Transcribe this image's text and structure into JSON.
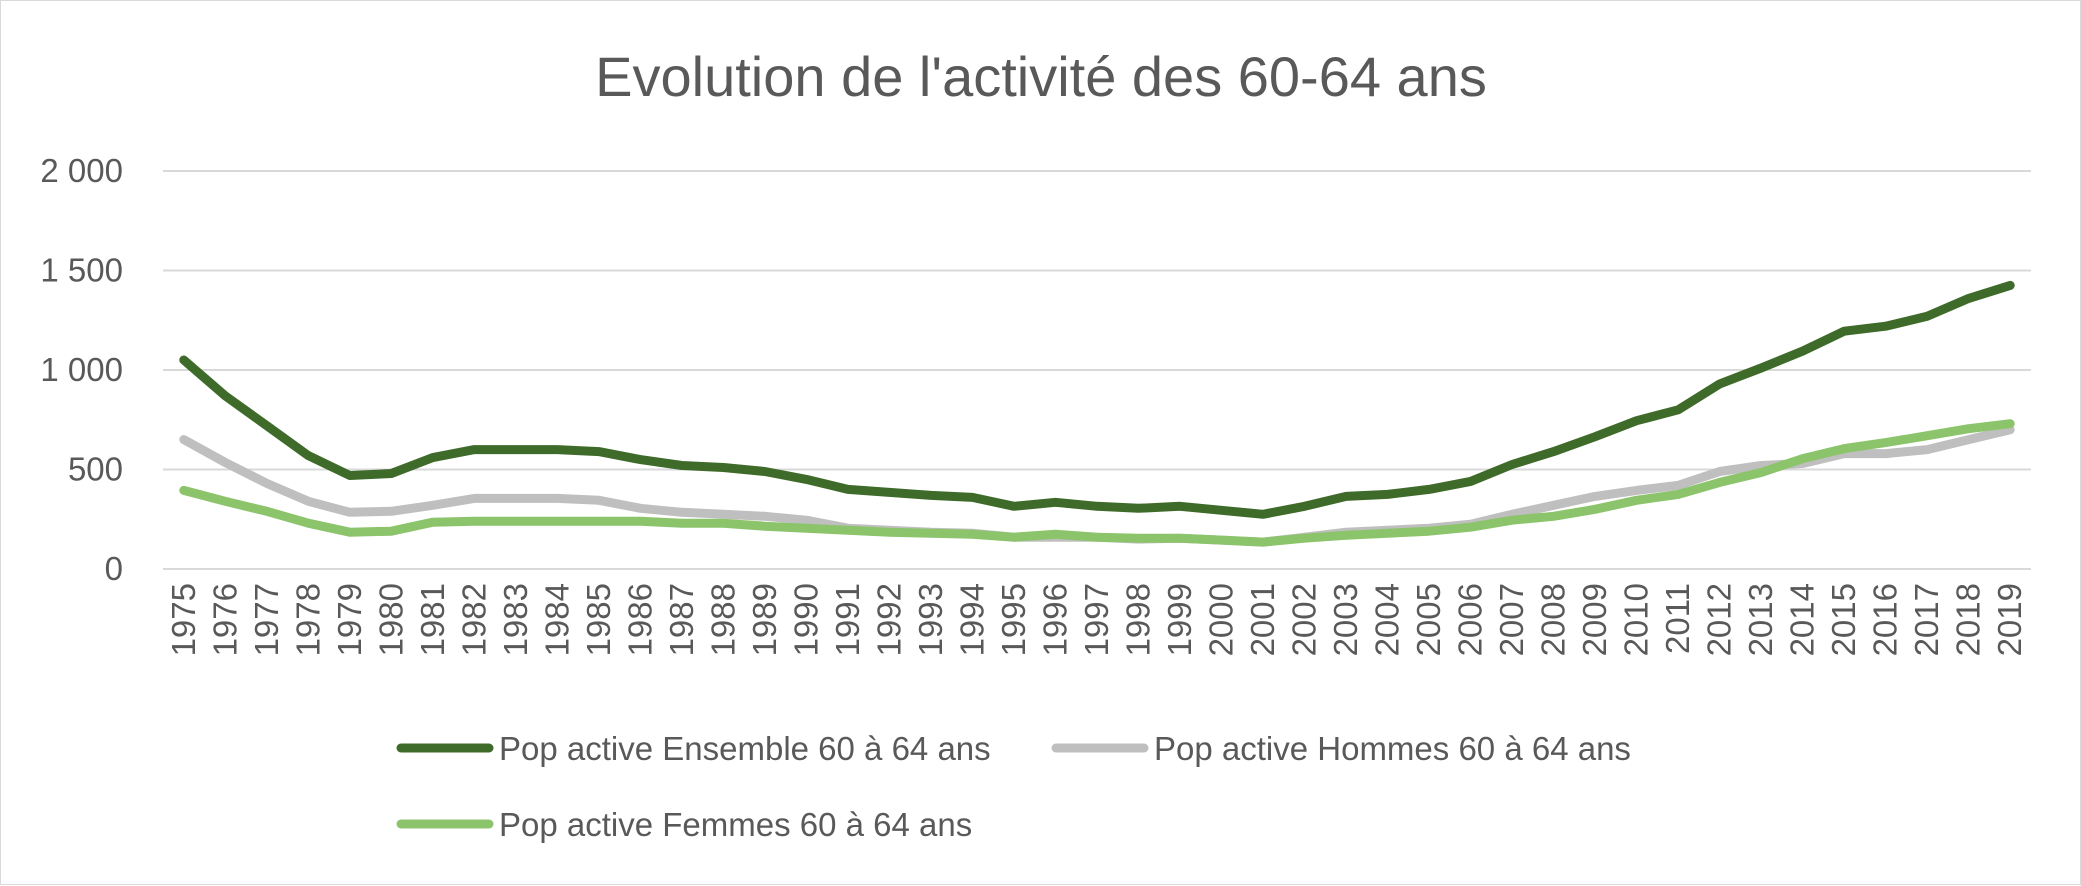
{
  "chart_data": {
    "type": "line",
    "title": "Evolution de l'activité des 60-64 ans",
    "xlabel": "",
    "ylabel": "",
    "ylim": [
      0,
      2000
    ],
    "yticks": [
      0,
      500,
      1000,
      1500,
      2000
    ],
    "ytick_labels": [
      "0",
      "500",
      "1 000",
      "1 500",
      "2 000"
    ],
    "grid": true,
    "legend_position": "bottom",
    "categories": [
      "1975",
      "1976",
      "1977",
      "1978",
      "1979",
      "1980",
      "1981",
      "1982",
      "1983",
      "1984",
      "1985",
      "1986",
      "1987",
      "1988",
      "1989",
      "1990",
      "1991",
      "1992",
      "1993",
      "1994",
      "1995",
      "1996",
      "1997",
      "1998",
      "1999",
      "2000",
      "2001",
      "2002",
      "2003",
      "2004",
      "2005",
      "2006",
      "2007",
      "2008",
      "2009",
      "2010",
      "2011",
      "2012",
      "2013",
      "2014",
      "2015",
      "2016",
      "2017",
      "2018",
      "2019"
    ],
    "series": [
      {
        "name": "Pop active Ensemble 60 à 64 ans",
        "color": "#3f6b2a",
        "values": [
          1050,
          870,
          720,
          570,
          470,
          480,
          560,
          600,
          600,
          600,
          590,
          550,
          520,
          510,
          490,
          450,
          400,
          385,
          370,
          360,
          315,
          335,
          315,
          305,
          315,
          295,
          275,
          315,
          365,
          375,
          400,
          440,
          525,
          590,
          665,
          745,
          800,
          930,
          1010,
          1095,
          1195,
          1220,
          1270,
          1360,
          1425
        ]
      },
      {
        "name": "Pop active Hommes 60 à 64 ans",
        "color": "#bfbfbf",
        "values": [
          650,
          535,
          430,
          340,
          285,
          290,
          320,
          355,
          355,
          355,
          345,
          305,
          285,
          275,
          265,
          245,
          205,
          195,
          185,
          180,
          160,
          160,
          160,
          150,
          155,
          145,
          135,
          160,
          185,
          195,
          205,
          225,
          275,
          320,
          365,
          395,
          420,
          490,
          520,
          530,
          580,
          580,
          600,
          650,
          700
        ]
      },
      {
        "name": "Pop active Femmes 60 à 64 ans",
        "color": "#8cc46c",
        "values": [
          395,
          340,
          290,
          230,
          185,
          190,
          235,
          240,
          240,
          240,
          240,
          240,
          230,
          230,
          215,
          205,
          195,
          185,
          180,
          175,
          160,
          175,
          160,
          155,
          155,
          145,
          135,
          155,
          170,
          180,
          190,
          210,
          245,
          265,
          300,
          345,
          375,
          435,
          485,
          555,
          605,
          635,
          670,
          705,
          730
        ]
      }
    ]
  }
}
